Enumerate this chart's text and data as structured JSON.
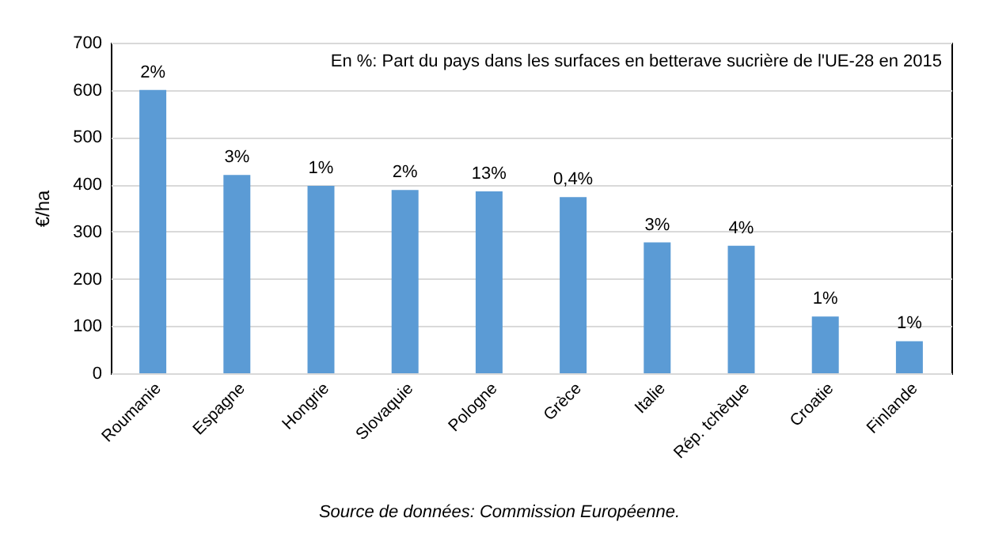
{
  "chart_data": {
    "type": "bar",
    "ylabel": "€/ha",
    "categories": [
      "Roumanie",
      "Espagne",
      "Hongrie",
      "Slovaquie",
      "Pologne",
      "Grèce",
      "Italie",
      "Rép. tchèque",
      "Croatie",
      "Finlande"
    ],
    "values": [
      600,
      420,
      397,
      388,
      385,
      373,
      277,
      270,
      120,
      68
    ],
    "color": "#5b9bd5",
    "ylim": [
      0,
      700
    ],
    "yticks": [
      0,
      100,
      200,
      300,
      400,
      500,
      600,
      700
    ],
    "grid": "y",
    "annotations": [
      "En %: Part du pays dans les surfaces en betterave sucrière de l'UE-28 en 2015",
      {
        "text": "2%",
        "x": "Roumanie",
        "y": 600
      },
      {
        "text": "3%",
        "x": "Espagne",
        "y": 420
      },
      {
        "text": "1%",
        "x": "Hongrie",
        "y": 397
      },
      {
        "text": "2%",
        "x": "Slovaquie",
        "y": 388
      },
      {
        "text": "13%",
        "x": "Pologne",
        "y": 385
      },
      {
        "text": "0,4%",
        "x": "Grèce",
        "y": 373
      },
      {
        "text": "3%",
        "x": "Italie",
        "y": 277
      },
      {
        "text": "4%",
        "x": "Rép. tchèque",
        "y": 270
      },
      {
        "text": "1%",
        "x": "Croatie",
        "y": 120
      },
      {
        "text": "1%",
        "x": "Finlande",
        "y": 68
      },
      "Source de données: Commission Européenne."
    ]
  }
}
